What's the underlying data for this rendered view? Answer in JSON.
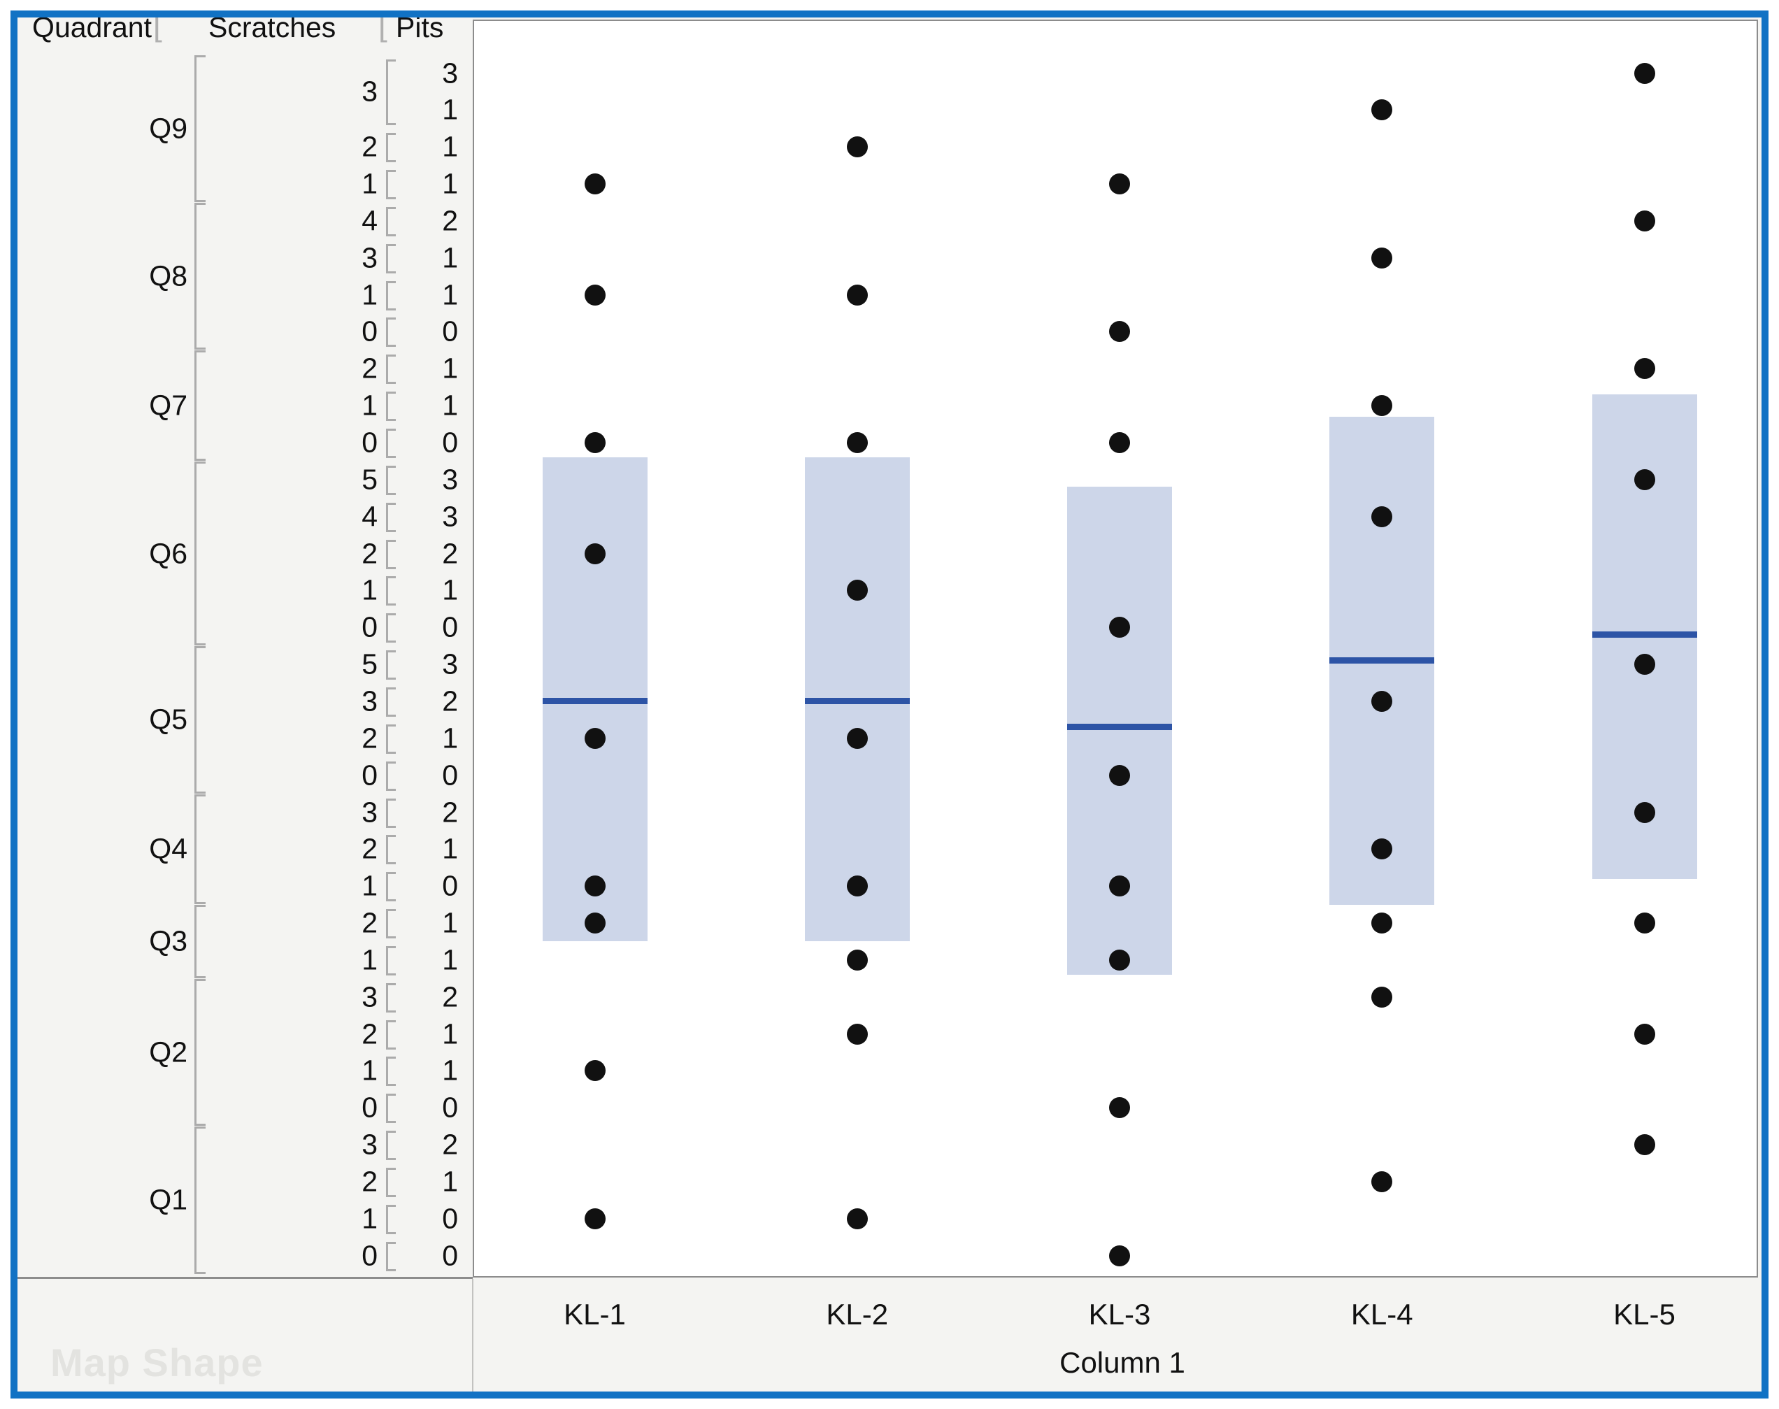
{
  "header": {
    "quadrant": "Quadrant",
    "scratches": "Scratches",
    "pits": "Pits",
    "bracket": "["
  },
  "map_shape_label": "Map Shape",
  "colors": {
    "frame_blue": "#1172c4",
    "panel_bg": "#f4f4f2",
    "plot_bg": "#ffffff",
    "plot_border": "#8c8c8c",
    "bracket_gray": "#ababab",
    "box_fill": "#cdd6e9",
    "mean_line": "#2d54a6",
    "dot": "#111111",
    "faint_label": "#e3e3e0",
    "text": "#111111"
  },
  "chart_data": {
    "type": "scatter",
    "title": "",
    "xlabel": "Column 1",
    "x_categories": [
      "KL-1",
      "KL-2",
      "KL-3",
      "KL-4",
      "KL-5"
    ],
    "y_axis": {
      "levels": [
        "Quadrant",
        "Scratches",
        "Pits"
      ],
      "groups": [
        {
          "label": "Q9",
          "scratches": [
            {
              "value": "3",
              "pits": [
                "3",
                "1"
              ]
            },
            {
              "value": "2",
              "pits": [
                "1"
              ]
            },
            {
              "value": "1",
              "pits": [
                "1"
              ]
            }
          ]
        },
        {
          "label": "Q8",
          "scratches": [
            {
              "value": "4",
              "pits": [
                "2"
              ]
            },
            {
              "value": "3",
              "pits": [
                "1"
              ]
            },
            {
              "value": "1",
              "pits": [
                "1"
              ]
            },
            {
              "value": "0",
              "pits": [
                "0"
              ]
            }
          ]
        },
        {
          "label": "Q7",
          "scratches": [
            {
              "value": "2",
              "pits": [
                "1"
              ]
            },
            {
              "value": "1",
              "pits": [
                "1"
              ]
            },
            {
              "value": "0",
              "pits": [
                "0"
              ]
            }
          ]
        },
        {
          "label": "Q6",
          "scratches": [
            {
              "value": "5",
              "pits": [
                "3"
              ]
            },
            {
              "value": "4",
              "pits": [
                "3"
              ]
            },
            {
              "value": "2",
              "pits": [
                "2"
              ]
            },
            {
              "value": "1",
              "pits": [
                "1"
              ]
            },
            {
              "value": "0",
              "pits": [
                "0"
              ]
            }
          ]
        },
        {
          "label": "Q5",
          "scratches": [
            {
              "value": "5",
              "pits": [
                "3"
              ]
            },
            {
              "value": "3",
              "pits": [
                "2"
              ]
            },
            {
              "value": "2",
              "pits": [
                "1"
              ]
            },
            {
              "value": "0",
              "pits": [
                "0"
              ]
            }
          ]
        },
        {
          "label": "Q4",
          "scratches": [
            {
              "value": "3",
              "pits": [
                "2"
              ]
            },
            {
              "value": "2",
              "pits": [
                "1"
              ]
            },
            {
              "value": "1",
              "pits": [
                "0"
              ]
            }
          ]
        },
        {
          "label": "Q3",
          "scratches": [
            {
              "value": "2",
              "pits": [
                "1"
              ]
            },
            {
              "value": "1",
              "pits": [
                "1"
              ]
            }
          ]
        },
        {
          "label": "Q2",
          "scratches": [
            {
              "value": "3",
              "pits": [
                "2"
              ]
            },
            {
              "value": "2",
              "pits": [
                "1"
              ]
            },
            {
              "value": "1",
              "pits": [
                "1"
              ]
            },
            {
              "value": "0",
              "pits": [
                "0"
              ]
            }
          ]
        },
        {
          "label": "Q1",
          "scratches": [
            {
              "value": "3",
              "pits": [
                "2"
              ]
            },
            {
              "value": "2",
              "pits": [
                "1"
              ]
            },
            {
              "value": "1",
              "pits": [
                "0"
              ]
            },
            {
              "value": "0",
              "pits": [
                "0"
              ]
            }
          ]
        }
      ]
    },
    "points_by_column": [
      {
        "column": "KL-1",
        "row_indices": [
          3,
          6,
          10,
          13,
          18,
          22,
          23,
          27,
          31
        ]
      },
      {
        "column": "KL-2",
        "row_indices": [
          2,
          6,
          10,
          14,
          18,
          22,
          24,
          26,
          31
        ]
      },
      {
        "column": "KL-3",
        "row_indices": [
          3,
          7,
          10,
          15,
          19,
          22,
          24,
          28,
          32
        ]
      },
      {
        "column": "KL-4",
        "row_indices": [
          1,
          5,
          9,
          12,
          17,
          21,
          23,
          25,
          30
        ]
      },
      {
        "column": "KL-5",
        "row_indices": [
          0,
          4,
          8,
          11,
          16,
          20,
          23,
          26,
          29
        ]
      }
    ],
    "summaries": [
      {
        "column": "KL-1",
        "mean_row": 17.0,
        "box_top_row": 10.4,
        "box_bottom_row": 23.5
      },
      {
        "column": "KL-2",
        "mean_row": 17.0,
        "box_top_row": 10.4,
        "box_bottom_row": 23.5
      },
      {
        "column": "KL-3",
        "mean_row": 17.7,
        "box_top_row": 11.2,
        "box_bottom_row": 24.4
      },
      {
        "column": "KL-4",
        "mean_row": 15.9,
        "box_top_row": 9.3,
        "box_bottom_row": 22.5
      },
      {
        "column": "KL-5",
        "mean_row": 15.2,
        "box_top_row": 8.7,
        "box_bottom_row": 21.8
      }
    ],
    "layout_hints": {
      "grid": false,
      "legend": "none",
      "orientation": "nested-categorical-y"
    }
  }
}
